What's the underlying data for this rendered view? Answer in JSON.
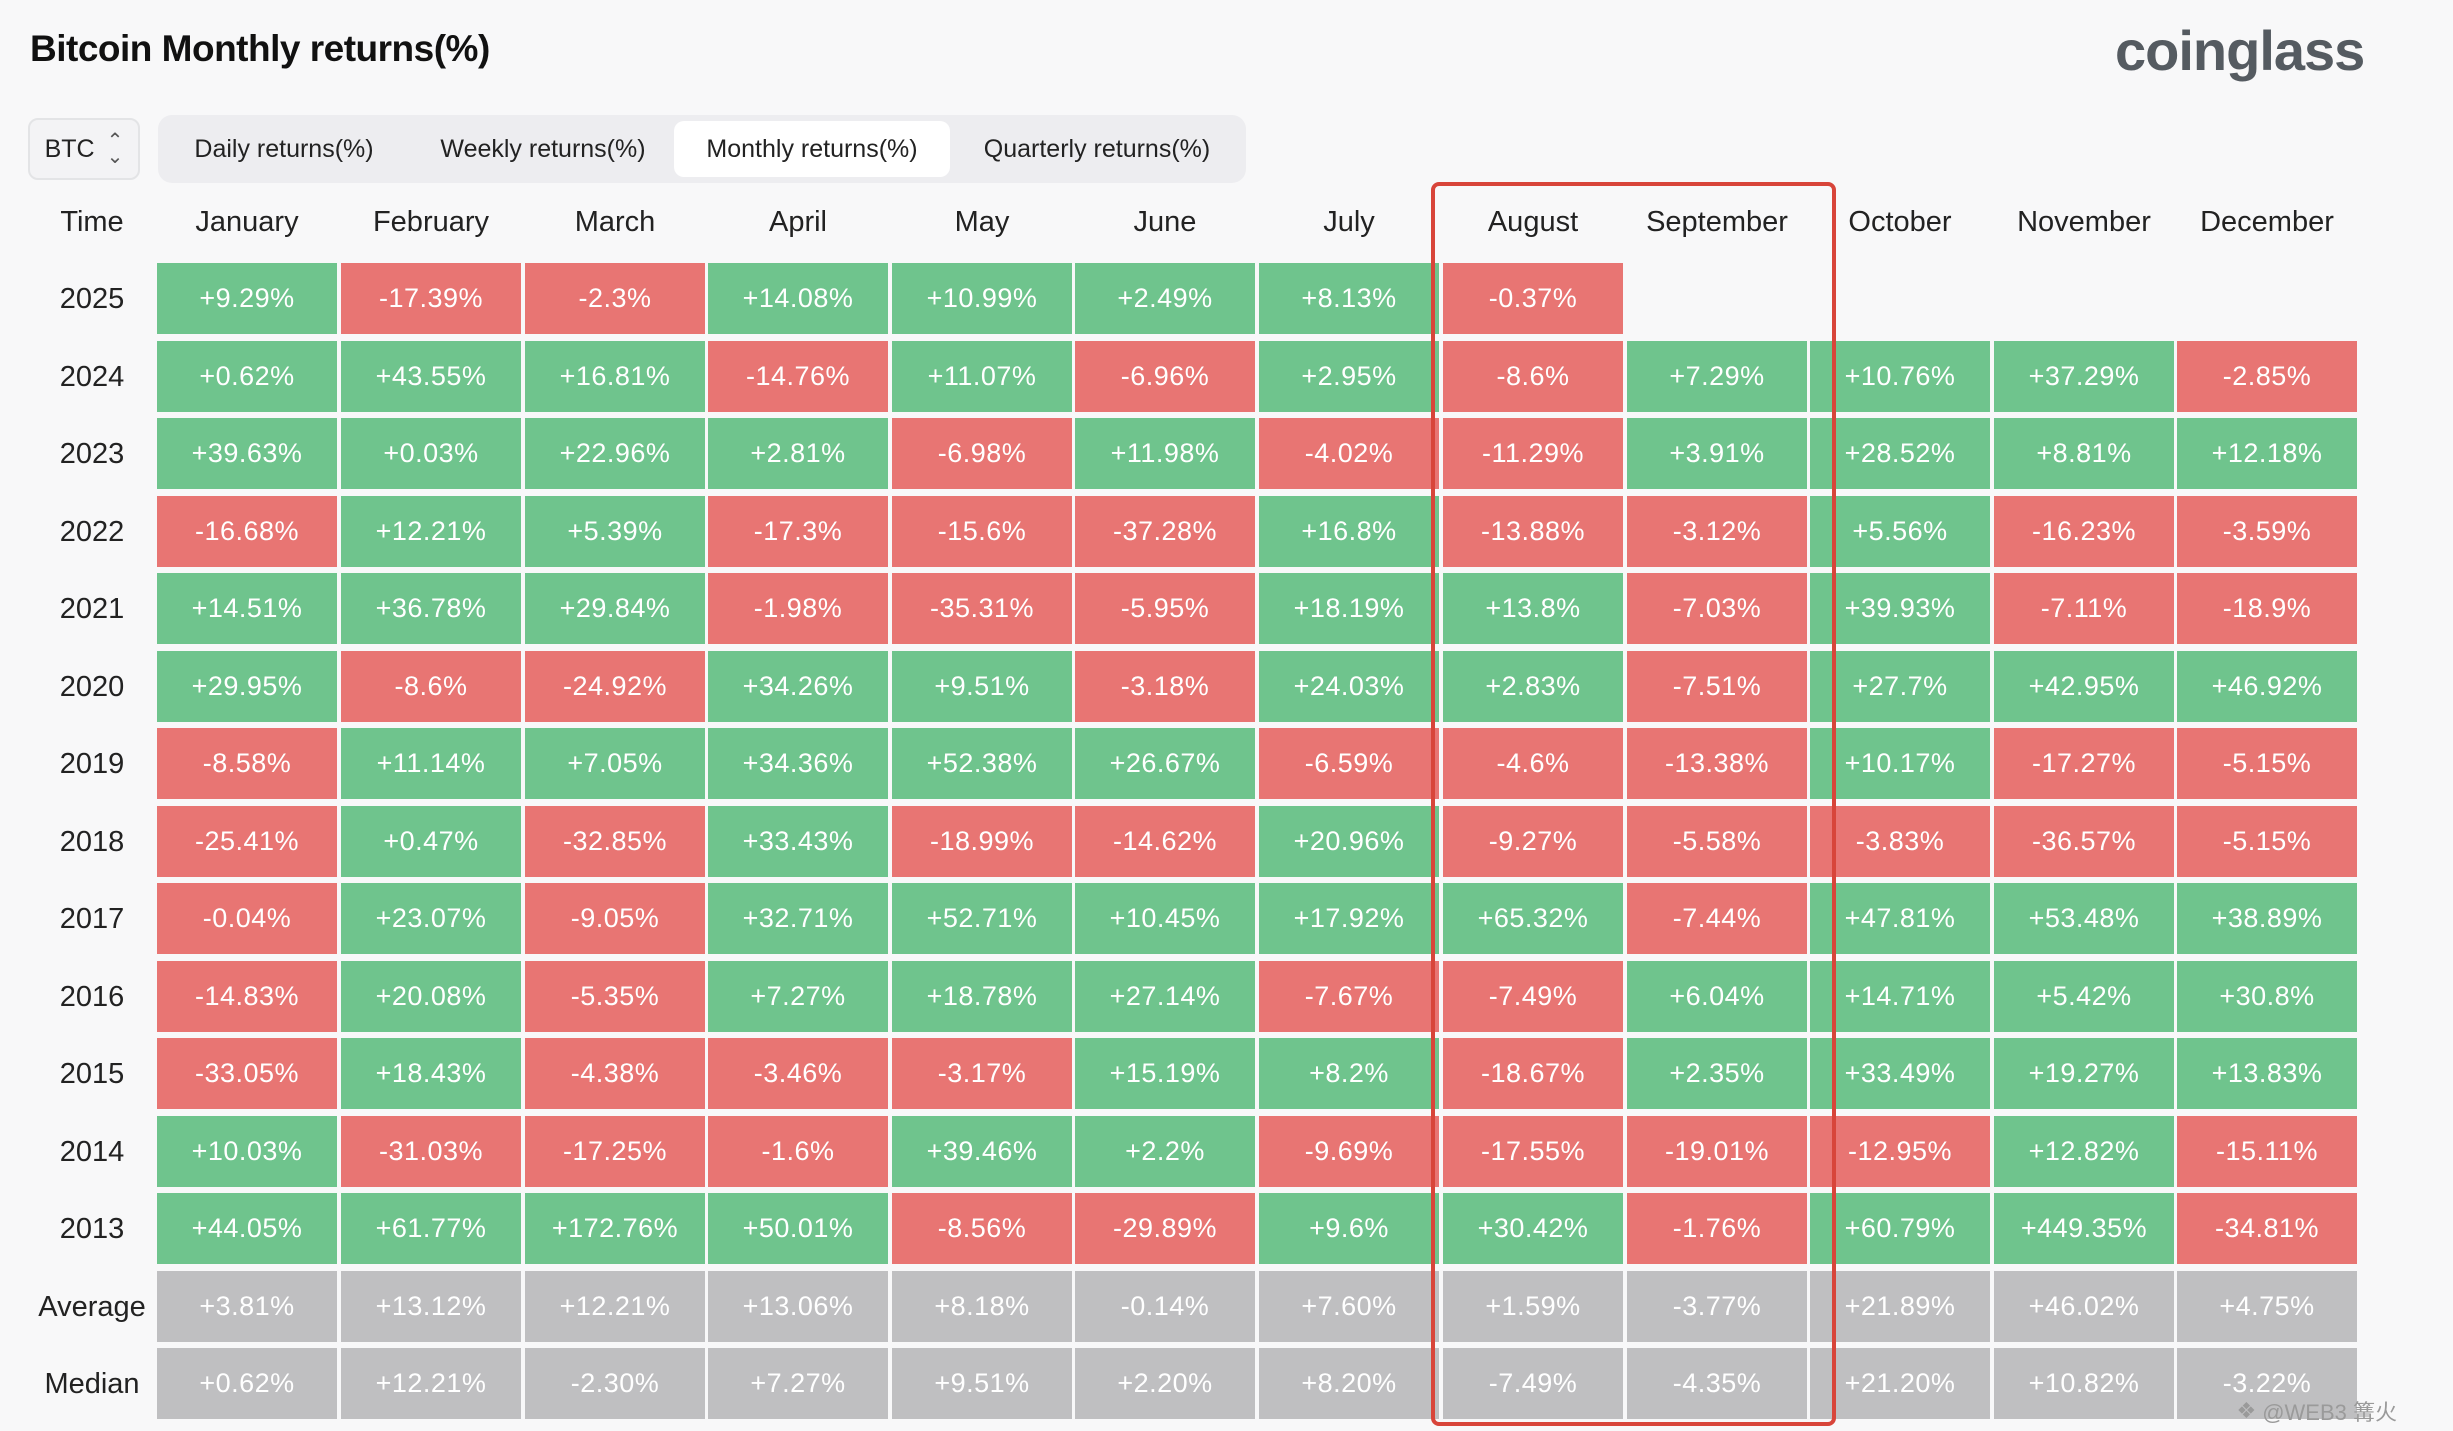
{
  "header": {
    "title": "Bitcoin Monthly returns(%)",
    "logo": "coinglass"
  },
  "controls": {
    "symbol": "BTC",
    "tabs": [
      {
        "label": "Daily returns(%)",
        "active": false
      },
      {
        "label": "Weekly returns(%)",
        "active": false
      },
      {
        "label": "Monthly returns(%)",
        "active": true
      },
      {
        "label": "Quarterly returns(%)",
        "active": false
      }
    ]
  },
  "colors": {
    "positive": "#6fc48d",
    "negative": "#e87573",
    "summary": "#bfbfc1",
    "highlight": "#d8453a"
  },
  "watermark": "@WEB3 篝火",
  "chart_data": {
    "type": "table",
    "title": "Bitcoin Monthly returns(%)",
    "corner_label": "Time",
    "columns": [
      "January",
      "February",
      "March",
      "April",
      "May",
      "June",
      "July",
      "August",
      "September",
      "October",
      "November",
      "December"
    ],
    "highlighted_columns": [
      "August",
      "September"
    ],
    "rows": [
      {
        "label": "2025",
        "values": [
          "+9.29%",
          "-17.39%",
          "-2.3%",
          "+14.08%",
          "+10.99%",
          "+2.49%",
          "+8.13%",
          "-0.37%",
          "",
          "",
          "",
          ""
        ]
      },
      {
        "label": "2024",
        "values": [
          "+0.62%",
          "+43.55%",
          "+16.81%",
          "-14.76%",
          "+11.07%",
          "-6.96%",
          "+2.95%",
          "-8.6%",
          "+7.29%",
          "+10.76%",
          "+37.29%",
          "-2.85%"
        ]
      },
      {
        "label": "2023",
        "values": [
          "+39.63%",
          "+0.03%",
          "+22.96%",
          "+2.81%",
          "-6.98%",
          "+11.98%",
          "-4.02%",
          "-11.29%",
          "+3.91%",
          "+28.52%",
          "+8.81%",
          "+12.18%"
        ]
      },
      {
        "label": "2022",
        "values": [
          "-16.68%",
          "+12.21%",
          "+5.39%",
          "-17.3%",
          "-15.6%",
          "-37.28%",
          "+16.8%",
          "-13.88%",
          "-3.12%",
          "+5.56%",
          "-16.23%",
          "-3.59%"
        ]
      },
      {
        "label": "2021",
        "values": [
          "+14.51%",
          "+36.78%",
          "+29.84%",
          "-1.98%",
          "-35.31%",
          "-5.95%",
          "+18.19%",
          "+13.8%",
          "-7.03%",
          "+39.93%",
          "-7.11%",
          "-18.9%"
        ]
      },
      {
        "label": "2020",
        "values": [
          "+29.95%",
          "-8.6%",
          "-24.92%",
          "+34.26%",
          "+9.51%",
          "-3.18%",
          "+24.03%",
          "+2.83%",
          "-7.51%",
          "+27.7%",
          "+42.95%",
          "+46.92%"
        ]
      },
      {
        "label": "2019",
        "values": [
          "-8.58%",
          "+11.14%",
          "+7.05%",
          "+34.36%",
          "+52.38%",
          "+26.67%",
          "-6.59%",
          "-4.6%",
          "-13.38%",
          "+10.17%",
          "-17.27%",
          "-5.15%"
        ]
      },
      {
        "label": "2018",
        "values": [
          "-25.41%",
          "+0.47%",
          "-32.85%",
          "+33.43%",
          "-18.99%",
          "-14.62%",
          "+20.96%",
          "-9.27%",
          "-5.58%",
          "-3.83%",
          "-36.57%",
          "-5.15%"
        ]
      },
      {
        "label": "2017",
        "values": [
          "-0.04%",
          "+23.07%",
          "-9.05%",
          "+32.71%",
          "+52.71%",
          "+10.45%",
          "+17.92%",
          "+65.32%",
          "-7.44%",
          "+47.81%",
          "+53.48%",
          "+38.89%"
        ]
      },
      {
        "label": "2016",
        "values": [
          "-14.83%",
          "+20.08%",
          "-5.35%",
          "+7.27%",
          "+18.78%",
          "+27.14%",
          "-7.67%",
          "-7.49%",
          "+6.04%",
          "+14.71%",
          "+5.42%",
          "+30.8%"
        ]
      },
      {
        "label": "2015",
        "values": [
          "-33.05%",
          "+18.43%",
          "-4.38%",
          "-3.46%",
          "-3.17%",
          "+15.19%",
          "+8.2%",
          "-18.67%",
          "+2.35%",
          "+33.49%",
          "+19.27%",
          "+13.83%"
        ]
      },
      {
        "label": "2014",
        "values": [
          "+10.03%",
          "-31.03%",
          "-17.25%",
          "-1.6%",
          "+39.46%",
          "+2.2%",
          "-9.69%",
          "-17.55%",
          "-19.01%",
          "-12.95%",
          "+12.82%",
          "-15.11%"
        ]
      },
      {
        "label": "2013",
        "values": [
          "+44.05%",
          "+61.77%",
          "+172.76%",
          "+50.01%",
          "-8.56%",
          "-29.89%",
          "+9.6%",
          "+30.42%",
          "-1.76%",
          "+60.79%",
          "+449.35%",
          "-34.81%"
        ]
      }
    ],
    "summary_rows": [
      {
        "label": "Average",
        "values": [
          "+3.81%",
          "+13.12%",
          "+12.21%",
          "+13.06%",
          "+8.18%",
          "-0.14%",
          "+7.60%",
          "+1.59%",
          "-3.77%",
          "+21.89%",
          "+46.02%",
          "+4.75%"
        ]
      },
      {
        "label": "Median",
        "values": [
          "+0.62%",
          "+12.21%",
          "-2.30%",
          "+7.27%",
          "+9.51%",
          "+2.20%",
          "+8.20%",
          "-7.49%",
          "-4.35%",
          "+21.20%",
          "+10.82%",
          "-3.22%"
        ]
      }
    ]
  }
}
